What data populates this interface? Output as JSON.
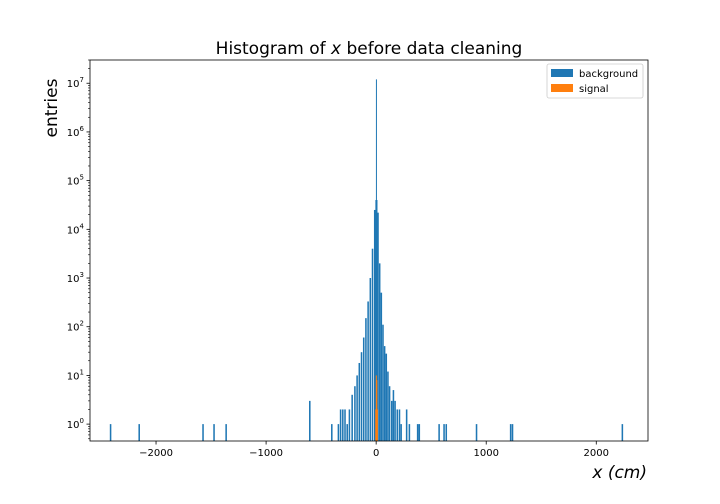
{
  "chart_data": {
    "type": "bar",
    "title_prefix": "Histogram of ",
    "title_var": "x",
    "title_suffix": " before data cleaning",
    "xlabel_var": "x",
    "xlabel_unit": "(cm)",
    "ylabel": "entries",
    "xlim": [
      -2600,
      2470
    ],
    "ylim_log": [
      0.45,
      30000000
    ],
    "y_scale": "log",
    "grid": false,
    "legend_position": "top-right",
    "x_ticks": [
      {
        "value": -2000,
        "label": "−2000"
      },
      {
        "value": -1000,
        "label": "−1000"
      },
      {
        "value": 0,
        "label": "0"
      },
      {
        "value": 1000,
        "label": "1000"
      },
      {
        "value": 2000,
        "label": "2000"
      }
    ],
    "y_ticks": [
      {
        "exp": 0,
        "base": "10",
        "sup": "0"
      },
      {
        "exp": 1,
        "base": "10",
        "sup": "1"
      },
      {
        "exp": 2,
        "base": "10",
        "sup": "2"
      },
      {
        "exp": 3,
        "base": "10",
        "sup": "3"
      },
      {
        "exp": 4,
        "base": "10",
        "sup": "4"
      },
      {
        "exp": 5,
        "base": "10",
        "sup": "5"
      },
      {
        "exp": 6,
        "base": "10",
        "sup": "6"
      },
      {
        "exp": 7,
        "base": "10",
        "sup": "7"
      }
    ],
    "series": [
      {
        "name": "background",
        "color": "#1f77b4",
        "points": [
          {
            "x": -2420,
            "w": 14,
            "y": 1
          },
          {
            "x": -2160,
            "w": 14,
            "y": 1
          },
          {
            "x": -1580,
            "w": 14,
            "y": 1
          },
          {
            "x": -1480,
            "w": 14,
            "y": 1
          },
          {
            "x": -1370,
            "w": 14,
            "y": 1
          },
          {
            "x": -610,
            "w": 14,
            "y": 3
          },
          {
            "x": -410,
            "w": 14,
            "y": 1
          },
          {
            "x": -350,
            "w": 14,
            "y": 1
          },
          {
            "x": -330,
            "w": 14,
            "y": 2
          },
          {
            "x": -310,
            "w": 14,
            "y": 2
          },
          {
            "x": -290,
            "w": 14,
            "y": 2
          },
          {
            "x": -270,
            "w": 14,
            "y": 1
          },
          {
            "x": -250,
            "w": 14,
            "y": 2
          },
          {
            "x": -225,
            "w": 14,
            "y": 4
          },
          {
            "x": -200,
            "w": 14,
            "y": 6
          },
          {
            "x": -180,
            "w": 14,
            "y": 10
          },
          {
            "x": -160,
            "w": 14,
            "y": 18
          },
          {
            "x": -140,
            "w": 14,
            "y": 30
          },
          {
            "x": -120,
            "w": 14,
            "y": 60
          },
          {
            "x": -100,
            "w": 14,
            "y": 150
          },
          {
            "x": -80,
            "w": 14,
            "y": 330
          },
          {
            "x": -60,
            "w": 14,
            "y": 1000
          },
          {
            "x": -40,
            "w": 14,
            "y": 4000
          },
          {
            "x": -20,
            "w": 14,
            "y": 25000
          },
          {
            "x": -7,
            "w": 5,
            "y": 40000
          },
          {
            "x": -2,
            "w": 2,
            "y": 12000000
          },
          {
            "x": 3,
            "w": 5,
            "y": 40000
          },
          {
            "x": 10,
            "w": 14,
            "y": 22000
          },
          {
            "x": 25,
            "w": 14,
            "y": 2000
          },
          {
            "x": 40,
            "w": 14,
            "y": 500
          },
          {
            "x": 55,
            "w": 14,
            "y": 110
          },
          {
            "x": 70,
            "w": 14,
            "y": 40
          },
          {
            "x": 85,
            "w": 14,
            "y": 28
          },
          {
            "x": 100,
            "w": 14,
            "y": 12
          },
          {
            "x": 115,
            "w": 14,
            "y": 6
          },
          {
            "x": 135,
            "w": 14,
            "y": 3
          },
          {
            "x": 150,
            "w": 14,
            "y": 5
          },
          {
            "x": 165,
            "w": 14,
            "y": 3
          },
          {
            "x": 185,
            "w": 14,
            "y": 2
          },
          {
            "x": 205,
            "w": 14,
            "y": 2
          },
          {
            "x": 220,
            "w": 14,
            "y": 1
          },
          {
            "x": 270,
            "w": 14,
            "y": 2
          },
          {
            "x": 295,
            "w": 14,
            "y": 1
          },
          {
            "x": 370,
            "w": 14,
            "y": 1
          },
          {
            "x": 385,
            "w": 14,
            "y": 1
          },
          {
            "x": 565,
            "w": 14,
            "y": 1
          },
          {
            "x": 610,
            "w": 14,
            "y": 1
          },
          {
            "x": 630,
            "w": 14,
            "y": 1
          },
          {
            "x": 905,
            "w": 14,
            "y": 1
          },
          {
            "x": 1215,
            "w": 14,
            "y": 1
          },
          {
            "x": 1232,
            "w": 14,
            "y": 1
          },
          {
            "x": 2230,
            "w": 14,
            "y": 1
          }
        ]
      },
      {
        "name": "signal",
        "color": "#ff7f0e",
        "points": [
          {
            "x": -8,
            "w": 5,
            "y": 2
          },
          {
            "x": -3,
            "w": 5,
            "y": 10
          },
          {
            "x": 2,
            "w": 5,
            "y": 8
          },
          {
            "x": 7,
            "w": 5,
            "y": 2
          }
        ]
      }
    ]
  }
}
